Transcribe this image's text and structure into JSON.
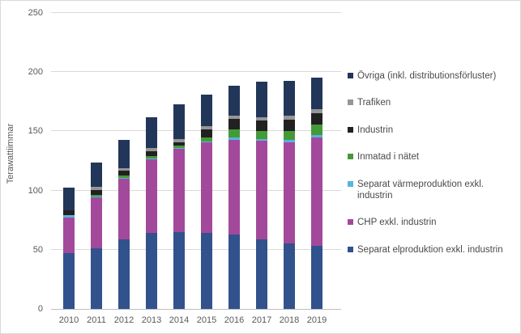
{
  "chart_data": {
    "type": "bar",
    "stacked": true,
    "title": "",
    "xlabel": "",
    "ylabel": "Terawattiimmar",
    "ylim": [
      0,
      250
    ],
    "ytick_step": 50,
    "yticks": [
      0,
      50,
      100,
      150,
      200,
      250
    ],
    "grid": true,
    "legend_position": "right",
    "legend_order": "reversed-of-stack",
    "categories": [
      "2010",
      "2011",
      "2012",
      "2013",
      "2014",
      "2015",
      "2016",
      "2017",
      "2018",
      "2019"
    ],
    "series": [
      {
        "name": "Separat elproduktion exkl. industrin",
        "color": "#31528C",
        "values": [
          47,
          51,
          59,
          64.5,
          65,
          64,
          63,
          59,
          55,
          53
        ]
      },
      {
        "name": "CHP exkl. industrin",
        "color": "#A3499B",
        "values": [
          30,
          43.5,
          51,
          62,
          70.5,
          77,
          80,
          83,
          86,
          92
        ]
      },
      {
        "name": "Separat värmeproduktion exkl. industrin",
        "color": "#56B4E2",
        "values": [
          2,
          0.5,
          0.5,
          0.5,
          0.5,
          0.5,
          1.5,
          1.5,
          1.5,
          2
        ]
      },
      {
        "name": "Inmatad i nätet",
        "color": "#459A38",
        "values": [
          0,
          1.5,
          2,
          2,
          2,
          3,
          7,
          7,
          8,
          9
        ]
      },
      {
        "name": "Industrin",
        "color": "#212121",
        "values": [
          4.5,
          4,
          4,
          4,
          3,
          7,
          9,
          9,
          9.5,
          9.5
        ]
      },
      {
        "name": "Trafiken",
        "color": "#969696",
        "values": [
          0,
          2.5,
          2.5,
          2.7,
          2.5,
          2.7,
          2.5,
          2.7,
          3,
          3
        ]
      },
      {
        "name": "Övriga (inkl. distributionsförluster)",
        "color": "#223659",
        "values": [
          19,
          20.5,
          23.5,
          26,
          29,
          26.5,
          25.5,
          30,
          29.5,
          27
        ]
      }
    ],
    "totals_approx": [
      102.5,
      123.5,
      142.5,
      161.7,
      172.5,
      180.7,
      188.5,
      192.2,
      192.5,
      195.5
    ]
  },
  "colors": {
    "gridline": "#d9d9d9",
    "axis_line": "#bfbfbf",
    "tick_text": "#595959",
    "legend_text": "#4a4a4a",
    "background": "#ffffff"
  }
}
